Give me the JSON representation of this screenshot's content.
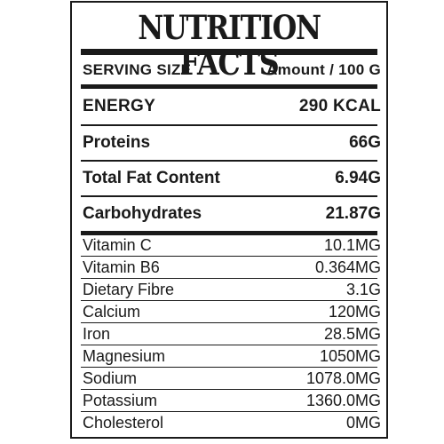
{
  "title": "NUTRITION FACTS",
  "serving": {
    "label": "SERVING SIZE",
    "value": "Amount / 100 G"
  },
  "energy": {
    "label": "ENERGY",
    "value": "290 KCAL"
  },
  "macros": [
    {
      "label": "Proteins",
      "value": "66G"
    },
    {
      "label": "Total Fat Content",
      "value": "6.94G"
    },
    {
      "label": "Carbohydrates",
      "value": "21.87G"
    }
  ],
  "micros": [
    {
      "label": "Vitamin C",
      "value": "10.1MG"
    },
    {
      "label": "Vitamin B6",
      "value": "0.364MG"
    },
    {
      "label": "Dietary Fibre",
      "value": "3.1G"
    },
    {
      "label": "Calcium",
      "value": "120MG"
    },
    {
      "label": "Iron",
      "value": "28.5MG"
    },
    {
      "label": "Magnesium",
      "value": "1050MG"
    },
    {
      "label": "Sodium",
      "value": "1078.0MG"
    },
    {
      "label": "Potassium",
      "value": "1360.0MG"
    },
    {
      "label": "Cholesterol",
      "value": "0MG"
    }
  ]
}
